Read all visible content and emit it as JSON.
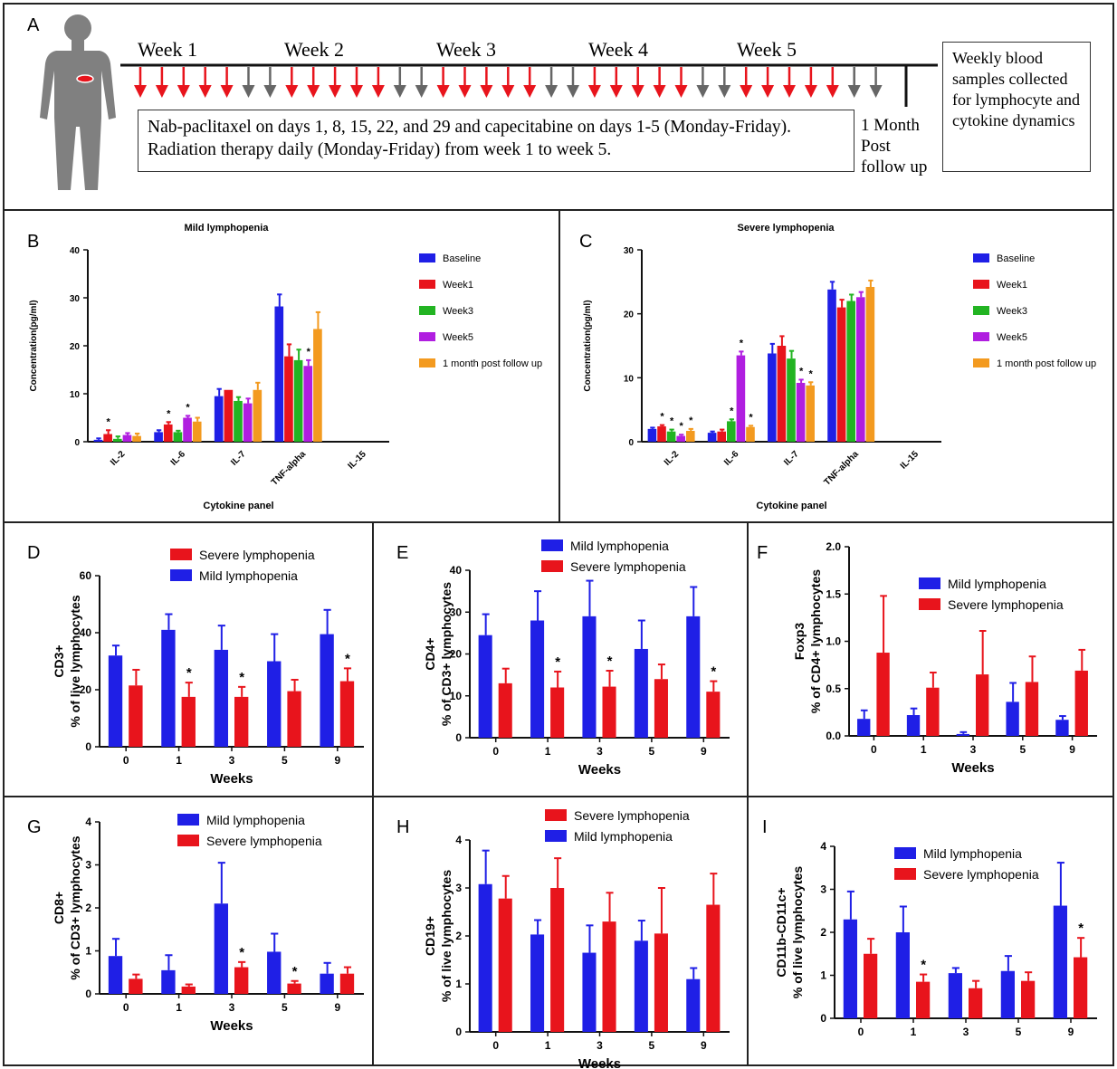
{
  "panel_a": {
    "label": "A",
    "week_labels": [
      "Week 1",
      "Week 2",
      "Week 3",
      "Week 4",
      "Week 5"
    ],
    "treatment_text": "Nab-paclitaxel on days 1, 8, 15, 22, and 29 and capecitabine on days 1-5  (Monday-Friday). Radiation therapy daily (Monday-Friday) from week 1 to week 5.",
    "follow_up_text": "1 Month Post follow up",
    "sample_text": "Weekly blood samples collected for lymphocyte and cytokine dynamics",
    "colors": {
      "treatment": "#e8141c",
      "rest": "#666666",
      "body": "#808080"
    }
  },
  "chart_data": [
    {
      "panel": "B",
      "type": "bar",
      "title": "Mild lymphopenia",
      "xlabel": "Cytokine panel",
      "ylabel": "Concentration(pg/ml)",
      "categories": [
        "IL-2",
        "IL-6",
        "IL-7",
        "TNF-alpha",
        "IL-15"
      ],
      "ylim": [
        0,
        40
      ],
      "yticks": [
        0,
        10,
        20,
        30,
        40
      ],
      "legend": "right",
      "series": [
        {
          "name": "Baseline",
          "color": "#1f1fe6",
          "values": [
            0.4,
            2.0,
            9.5,
            28.2,
            0
          ],
          "errors": [
            0.3,
            0.4,
            1.5,
            2.5,
            0
          ]
        },
        {
          "name": "Week1",
          "color": "#e8141c",
          "values": [
            1.6,
            3.6,
            10.8,
            17.8,
            0
          ],
          "errors": [
            0.8,
            0.5,
            0,
            2.5,
            0
          ]
        },
        {
          "name": "Week3",
          "color": "#22b422",
          "values": [
            0.6,
            2.0,
            8.5,
            17.0,
            0
          ],
          "errors": [
            0.5,
            0.3,
            0.8,
            2.2,
            0
          ]
        },
        {
          "name": "Week5",
          "color": "#b01ee0",
          "values": [
            1.4,
            5.0,
            8.0,
            15.8,
            0
          ],
          "errors": [
            0.4,
            0.4,
            1.0,
            1.2,
            0
          ]
        },
        {
          "name": "1 month post follow up",
          "color": "#f39a1f",
          "values": [
            1.2,
            4.2,
            10.8,
            23.5,
            0
          ],
          "errors": [
            0.5,
            0.8,
            1.5,
            3.5,
            0
          ]
        }
      ],
      "annotations": [
        {
          "category": "IL-2",
          "series": 1,
          "text": "*"
        },
        {
          "category": "IL-6",
          "series": 1,
          "text": "*"
        },
        {
          "category": "IL-6",
          "series": 3,
          "text": "*"
        },
        {
          "category": "TNF-alpha",
          "series": 3,
          "text": "*"
        }
      ]
    },
    {
      "panel": "C",
      "type": "bar",
      "title": "Severe lymphopenia",
      "xlabel": "Cytokine panel",
      "ylabel": "Concentration(pg/ml)",
      "categories": [
        "IL-2",
        "IL-6",
        "IL-7",
        "TNF-alpha",
        "IL-15"
      ],
      "ylim": [
        0,
        30
      ],
      "yticks": [
        0,
        10,
        20,
        30
      ],
      "legend": "right",
      "series": [
        {
          "name": "Baseline",
          "color": "#1f1fe6",
          "values": [
            2.0,
            1.4,
            13.8,
            23.8,
            0
          ],
          "errors": [
            0.2,
            0.2,
            1.5,
            1.2,
            0
          ]
        },
        {
          "name": "Week1",
          "color": "#e8141c",
          "values": [
            2.4,
            1.6,
            15.0,
            21.0,
            0
          ],
          "errors": [
            0.2,
            0.3,
            1.5,
            1.2,
            0
          ]
        },
        {
          "name": "Week3",
          "color": "#22b422",
          "values": [
            1.6,
            3.2,
            13.0,
            22.0,
            0
          ],
          "errors": [
            0.3,
            0.3,
            1.2,
            1.0,
            0
          ]
        },
        {
          "name": "Week5",
          "color": "#b01ee0",
          "values": [
            0.9,
            13.5,
            9.2,
            22.6,
            0
          ],
          "errors": [
            0.2,
            0.6,
            0.5,
            0.8,
            0
          ]
        },
        {
          "name": "1 month post follow up",
          "color": "#f39a1f",
          "values": [
            1.7,
            2.3,
            8.8,
            24.2,
            0
          ],
          "errors": [
            0.3,
            0.2,
            0.5,
            1.0,
            0
          ]
        }
      ],
      "annotations": [
        {
          "category": "IL-2",
          "series": 1,
          "text": "*"
        },
        {
          "category": "IL-2",
          "series": 2,
          "text": "*"
        },
        {
          "category": "IL-2",
          "series": 3,
          "text": "*"
        },
        {
          "category": "IL-2",
          "series": 4,
          "text": "*"
        },
        {
          "category": "IL-6",
          "series": 2,
          "text": "*"
        },
        {
          "category": "IL-6",
          "series": 3,
          "text": "*"
        },
        {
          "category": "IL-6",
          "series": 4,
          "text": "*"
        },
        {
          "category": "IL-7",
          "series": 3,
          "text": "*"
        },
        {
          "category": "IL-7",
          "series": 4,
          "text": "*"
        }
      ]
    },
    {
      "panel": "D",
      "type": "bar",
      "xlabel": "Weeks",
      "ylabel": [
        "CD3+",
        "% of live lymphocytes"
      ],
      "categories": [
        "0",
        "1",
        "3",
        "5",
        "9"
      ],
      "ylim": [
        0,
        60
      ],
      "yticks": [
        0,
        20,
        40,
        60
      ],
      "legend": "top",
      "series": [
        {
          "name": "Mild lymphopenia",
          "color": "#1f1fe6",
          "values": [
            32,
            41,
            34,
            30,
            39.5
          ],
          "errors": [
            3.5,
            5.5,
            8.5,
            9.5,
            8.5
          ]
        },
        {
          "name": "Severe lymphopenia",
          "color": "#e8141c",
          "values": [
            21.5,
            17.5,
            17.5,
            19.5,
            23
          ],
          "errors": [
            5.5,
            5,
            3.5,
            4,
            4.5
          ]
        }
      ],
      "legend_order": [
        1,
        0
      ],
      "annotations": [
        {
          "category": "1",
          "series": 1,
          "text": "*"
        },
        {
          "category": "3",
          "series": 1,
          "text": "*"
        },
        {
          "category": "9",
          "series": 1,
          "text": "*"
        }
      ]
    },
    {
      "panel": "E",
      "type": "bar",
      "xlabel": "Weeks",
      "ylabel": [
        "CD4+",
        "% of CD3+ lymphocytes"
      ],
      "categories": [
        "0",
        "1",
        "3",
        "5",
        "9"
      ],
      "ylim": [
        0,
        40
      ],
      "yticks": [
        0,
        10,
        20,
        30,
        40
      ],
      "legend": "top",
      "series": [
        {
          "name": "Mild lymphopenia",
          "color": "#1f1fe6",
          "values": [
            24.5,
            28,
            29,
            21.2,
            29
          ],
          "errors": [
            5,
            7,
            8.5,
            6.8,
            7
          ]
        },
        {
          "name": "Severe lymphopenia",
          "color": "#e8141c",
          "values": [
            13,
            12,
            12.2,
            14,
            11
          ],
          "errors": [
            3.5,
            3.8,
            3.8,
            3.5,
            2.5
          ]
        }
      ],
      "legend_order": [
        0,
        1
      ],
      "annotations": [
        {
          "category": "1",
          "series": 1,
          "text": "*"
        },
        {
          "category": "3",
          "series": 1,
          "text": "*"
        },
        {
          "category": "9",
          "series": 1,
          "text": "*"
        }
      ]
    },
    {
      "panel": "F",
      "type": "bar",
      "xlabel": "Weeks",
      "ylabel": [
        "Foxp3",
        "% of CD4+ lymphocytes"
      ],
      "categories": [
        "0",
        "1",
        "3",
        "5",
        "9"
      ],
      "ylim": [
        0,
        2.0
      ],
      "yticks": [
        0,
        0.5,
        1.0,
        1.5,
        2.0
      ],
      "ytick_labels": [
        "0.0",
        "0.5",
        "1.0",
        "1.5",
        "2.0"
      ],
      "legend": "top",
      "series": [
        {
          "name": "Mild lymphopenia",
          "color": "#1f1fe6",
          "values": [
            0.18,
            0.22,
            0.02,
            0.36,
            0.17
          ],
          "errors": [
            0.09,
            0.07,
            0.02,
            0.2,
            0.04
          ]
        },
        {
          "name": "Severe lymphopenia",
          "color": "#e8141c",
          "values": [
            0.88,
            0.51,
            0.65,
            0.57,
            0.69
          ],
          "errors": [
            0.6,
            0.16,
            0.46,
            0.27,
            0.22
          ]
        }
      ],
      "legend_order": [
        0,
        1
      ],
      "annotations": []
    },
    {
      "panel": "G",
      "type": "bar",
      "xlabel": "Weeks",
      "ylabel": [
        "CD8+",
        "% of CD3+ lymphocytes"
      ],
      "categories": [
        "0",
        "1",
        "3",
        "5",
        "9"
      ],
      "ylim": [
        0,
        4
      ],
      "yticks": [
        0,
        1,
        2,
        3,
        4
      ],
      "legend": "top",
      "series": [
        {
          "name": "Mild lymphopenia",
          "color": "#1f1fe6",
          "values": [
            0.88,
            0.55,
            2.1,
            0.98,
            0.47
          ],
          "errors": [
            0.4,
            0.35,
            0.95,
            0.42,
            0.25
          ]
        },
        {
          "name": "Severe lymphopenia",
          "color": "#e8141c",
          "values": [
            0.35,
            0.17,
            0.62,
            0.24,
            0.47
          ],
          "errors": [
            0.1,
            0.05,
            0.12,
            0.06,
            0.15
          ]
        }
      ],
      "legend_order": [
        0,
        1
      ],
      "annotations": [
        {
          "category": "3",
          "series": 1,
          "text": "*"
        },
        {
          "category": "5",
          "series": 1,
          "text": "*"
        }
      ]
    },
    {
      "panel": "H",
      "type": "bar",
      "xlabel": "Weeks",
      "ylabel": [
        "CD19+",
        "% of live lymphocytes"
      ],
      "categories": [
        "0",
        "1",
        "3",
        "5",
        "9"
      ],
      "ylim": [
        0,
        4
      ],
      "yticks": [
        0,
        1,
        2,
        3,
        4
      ],
      "legend": "top",
      "series": [
        {
          "name": "Mild lymphopenia",
          "color": "#1f1fe6",
          "values": [
            3.08,
            2.03,
            1.65,
            1.9,
            1.1
          ],
          "errors": [
            0.7,
            0.3,
            0.57,
            0.42,
            0.23
          ]
        },
        {
          "name": "Severe lymphopenia",
          "color": "#e8141c",
          "values": [
            2.78,
            3.0,
            2.3,
            2.05,
            2.65
          ],
          "errors": [
            0.47,
            0.62,
            0.6,
            0.95,
            0.65
          ]
        }
      ],
      "legend_order": [
        1,
        0
      ],
      "annotations": []
    },
    {
      "panel": "I",
      "type": "bar",
      "xlabel": "",
      "ylabel": [
        "CD11b-CD11c+",
        "% of live lymphocytes"
      ],
      "categories": [
        "0",
        "1",
        "3",
        "5",
        "9"
      ],
      "ylim": [
        0,
        4
      ],
      "yticks": [
        0,
        1,
        2,
        3,
        4
      ],
      "legend": "top",
      "series": [
        {
          "name": "Mild lymphopenia",
          "color": "#1f1fe6",
          "values": [
            2.3,
            2.0,
            1.05,
            1.1,
            2.62
          ],
          "errors": [
            0.65,
            0.6,
            0.12,
            0.35,
            1.0
          ]
        },
        {
          "name": "Severe lymphopenia",
          "color": "#e8141c",
          "values": [
            1.5,
            0.85,
            0.7,
            0.87,
            1.42
          ],
          "errors": [
            0.35,
            0.17,
            0.17,
            0.2,
            0.45
          ]
        }
      ],
      "legend_order": [
        0,
        1
      ],
      "annotations": [
        {
          "category": "1",
          "series": 1,
          "text": "*"
        },
        {
          "category": "9",
          "series": 1,
          "text": "*"
        }
      ]
    }
  ]
}
